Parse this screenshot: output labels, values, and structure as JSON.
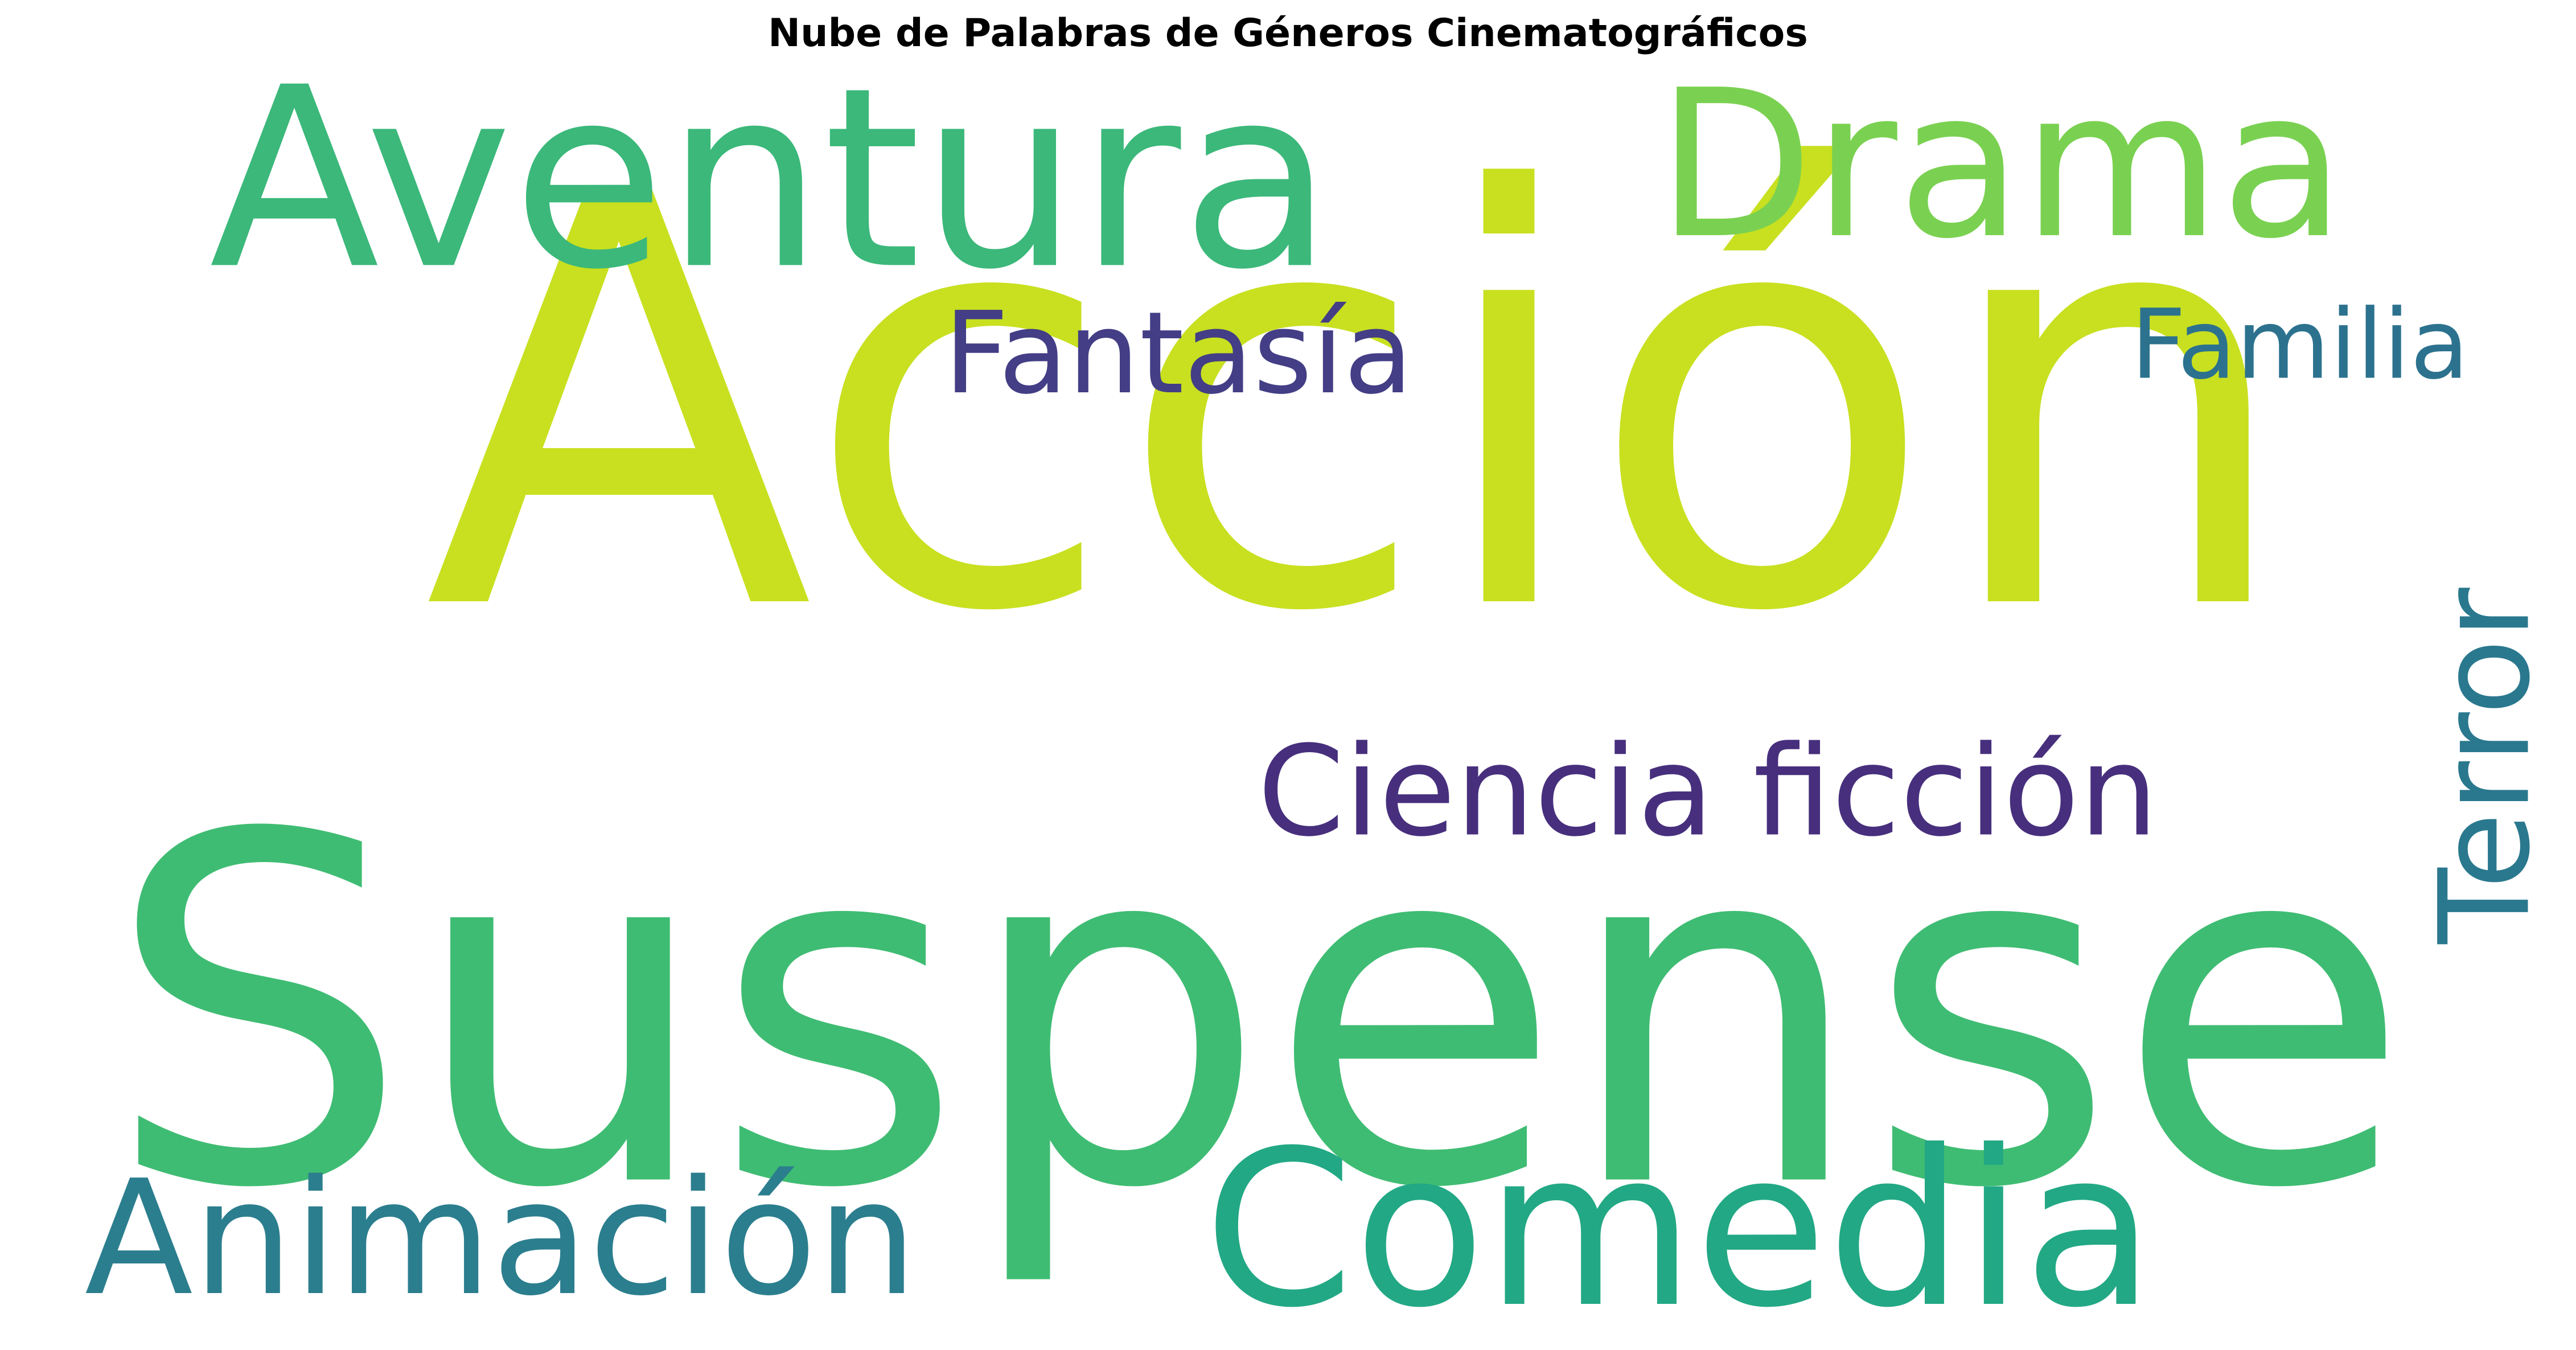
{
  "chart_data": {
    "type": "wordcloud",
    "title": "Nube de Palabras de Géneros Cinematográficos",
    "colormap": "viridis",
    "background": "#ffffff",
    "words": [
      {
        "text": "Acción",
        "color": "#c8e020",
        "vertical": false
      },
      {
        "text": "Suspense",
        "color": "#3fbc73",
        "vertical": false
      },
      {
        "text": "Aventura",
        "color": "#3bb87a",
        "vertical": false
      },
      {
        "text": "Drama",
        "color": "#7ad151",
        "vertical": false
      },
      {
        "text": "Comedia",
        "color": "#22a884",
        "vertical": false
      },
      {
        "text": "Animación",
        "color": "#2b7e8e",
        "vertical": false
      },
      {
        "text": "Terror",
        "color": "#2a788e",
        "vertical": true
      },
      {
        "text": "Familia",
        "color": "#2c728e",
        "vertical": false
      },
      {
        "text": "Fantasía",
        "color": "#433e85",
        "vertical": false
      },
      {
        "text": "Ciencia ficción",
        "color": "#472f7d",
        "vertical": false
      }
    ]
  }
}
